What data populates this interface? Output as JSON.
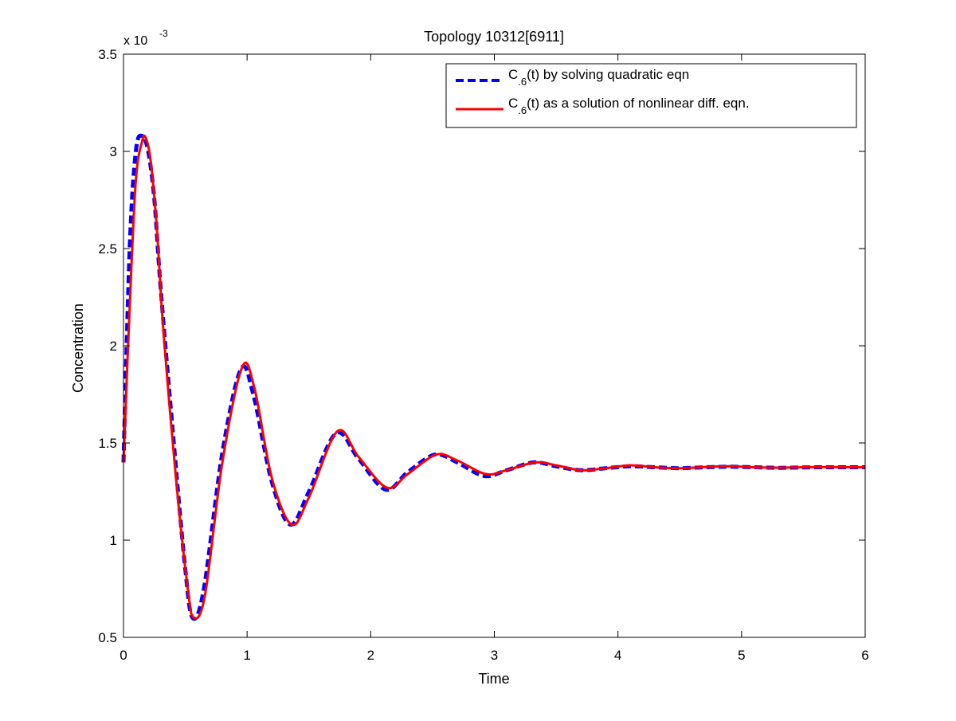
{
  "chart_data": {
    "type": "line",
    "title": "Topology 10312[6911]",
    "xlabel": "Time",
    "ylabel": "Concentration",
    "y_exponent_label": {
      "base": "x 10",
      "exponent": "-3"
    },
    "xlim": [
      0,
      6
    ],
    "ylim": [
      0.5,
      3.5
    ],
    "x_ticks": [
      0,
      1,
      2,
      3,
      4,
      5,
      6
    ],
    "x_tick_labels": [
      "0",
      "1",
      "2",
      "3",
      "4",
      "5",
      "6"
    ],
    "y_ticks": [
      0.5,
      1,
      1.5,
      2,
      2.5,
      3,
      3.5
    ],
    "y_tick_labels": [
      "0.5",
      "1",
      "1.5",
      "2",
      "2.5",
      "3",
      "3.5"
    ],
    "grid": false,
    "legend_position": "top-right",
    "series": [
      {
        "name_parts": {
          "main": "C",
          "sub": ".6",
          "rest": "(t) by solving quadratic eqn"
        },
        "color": "#0000ff",
        "style": "dashed",
        "x": [
          0,
          0.05,
          0.1,
          0.15,
          0.2,
          0.25,
          0.3,
          0.4,
          0.5,
          0.56,
          0.65,
          0.8,
          0.95,
          1.05,
          1.2,
          1.35,
          1.5,
          1.72,
          1.9,
          2.12,
          2.3,
          2.52,
          2.7,
          2.92,
          3.1,
          3.32,
          3.5,
          3.7,
          3.9,
          4.1,
          4.3,
          4.5,
          4.7,
          4.9,
          5.1,
          5.3,
          5.5,
          5.7,
          5.9,
          6.0
        ],
        "y": [
          1.4,
          2.5,
          3.0,
          3.08,
          3.0,
          2.75,
          2.3,
          1.55,
          0.85,
          0.6,
          0.75,
          1.45,
          1.88,
          1.75,
          1.3,
          1.08,
          1.25,
          1.55,
          1.42,
          1.26,
          1.35,
          1.44,
          1.4,
          1.33,
          1.36,
          1.4,
          1.38,
          1.36,
          1.37,
          1.38,
          1.375,
          1.37,
          1.375,
          1.378,
          1.375,
          1.372,
          1.374,
          1.375,
          1.375,
          1.375
        ]
      },
      {
        "name_parts": {
          "main": "C",
          "sub": ".6",
          "rest": "(t) as a solution of nonlinear diff. eqn."
        },
        "color": "#ff0000",
        "style": "solid",
        "x": [
          0,
          0.05,
          0.1,
          0.15,
          0.18,
          0.22,
          0.27,
          0.32,
          0.42,
          0.52,
          0.57,
          0.66,
          0.8,
          0.96,
          1.06,
          1.2,
          1.36,
          1.5,
          1.73,
          1.9,
          2.13,
          2.3,
          2.53,
          2.7,
          2.93,
          3.1,
          3.33,
          3.5,
          3.7,
          3.9,
          4.1,
          4.3,
          4.5,
          4.7,
          4.9,
          5.1,
          5.3,
          5.5,
          5.7,
          5.9,
          6.0
        ],
        "y": [
          1.4,
          2.2,
          2.85,
          3.05,
          3.07,
          2.95,
          2.6,
          2.1,
          1.35,
          0.75,
          0.6,
          0.72,
          1.4,
          1.89,
          1.78,
          1.32,
          1.08,
          1.22,
          1.56,
          1.43,
          1.27,
          1.34,
          1.44,
          1.41,
          1.34,
          1.36,
          1.4,
          1.385,
          1.36,
          1.37,
          1.385,
          1.375,
          1.37,
          1.376,
          1.38,
          1.375,
          1.373,
          1.375,
          1.376,
          1.375,
          1.375
        ]
      }
    ]
  }
}
